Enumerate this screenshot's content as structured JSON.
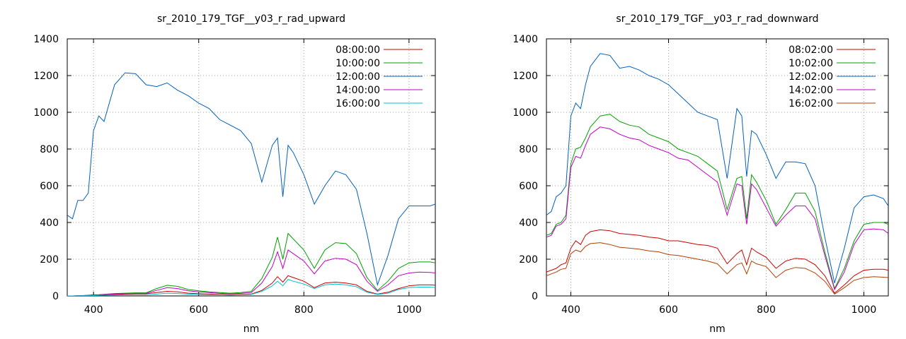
{
  "chart_data": [
    {
      "type": "line",
      "title": "sr_2010_179_TGF__y03_r_rad_upward",
      "xlabel": "nm",
      "ylabel": "",
      "xlim": [
        350,
        1050
      ],
      "ylim": [
        0,
        1400
      ],
      "x_ticks": [
        400,
        600,
        800,
        1000
      ],
      "y_ticks": [
        0,
        200,
        400,
        600,
        800,
        1000,
        1200,
        1400
      ],
      "grid": true,
      "legend": "top-right",
      "x": [
        350,
        360,
        370,
        380,
        390,
        400,
        410,
        420,
        430,
        440,
        460,
        480,
        500,
        520,
        540,
        560,
        580,
        600,
        620,
        640,
        660,
        680,
        700,
        720,
        740,
        750,
        760,
        770,
        780,
        800,
        820,
        840,
        860,
        880,
        900,
        920,
        940,
        960,
        980,
        1000,
        1020,
        1040,
        1050
      ],
      "series": [
        {
          "name": "08:00:00",
          "color": "#cc0000",
          "values": [
            0,
            0,
            1,
            2,
            3,
            4,
            5,
            6,
            7,
            8,
            10,
            12,
            12,
            18,
            25,
            22,
            15,
            12,
            10,
            8,
            7,
            8,
            10,
            30,
            70,
            105,
            75,
            110,
            100,
            80,
            45,
            70,
            75,
            70,
            60,
            25,
            10,
            20,
            40,
            55,
            60,
            60,
            58
          ]
        },
        {
          "name": "10:00:00",
          "color": "#00a000",
          "values": [
            0,
            0,
            1,
            2,
            4,
            6,
            7,
            9,
            11,
            13,
            15,
            17,
            17,
            40,
            58,
            52,
            35,
            28,
            22,
            18,
            15,
            18,
            25,
            95,
            210,
            320,
            200,
            340,
            310,
            250,
            150,
            250,
            290,
            285,
            230,
            100,
            30,
            80,
            150,
            180,
            185,
            185,
            180
          ]
        },
        {
          "name": "12:00:00",
          "color": "#0060c0",
          "values": [
            440,
            420,
            520,
            520,
            560,
            900,
            980,
            950,
            1050,
            1150,
            1215,
            1210,
            1150,
            1140,
            1160,
            1120,
            1090,
            1050,
            1020,
            960,
            930,
            900,
            830,
            620,
            820,
            860,
            540,
            820,
            780,
            660,
            500,
            600,
            680,
            660,
            580,
            340,
            60,
            220,
            420,
            490,
            490,
            490,
            500
          ]
        },
        {
          "name": "14:00:00",
          "color": "#c000c0",
          "values": [
            0,
            0,
            1,
            2,
            3,
            5,
            6,
            8,
            9,
            11,
            12,
            14,
            14,
            30,
            45,
            40,
            28,
            22,
            18,
            14,
            12,
            14,
            18,
            70,
            160,
            240,
            150,
            250,
            230,
            190,
            120,
            190,
            205,
            200,
            170,
            80,
            25,
            60,
            110,
            125,
            130,
            128,
            125
          ]
        },
        {
          "name": "16:00:00",
          "color": "#00c0d0",
          "values": [
            0,
            0,
            0,
            1,
            1,
            2,
            3,
            4,
            5,
            5,
            6,
            7,
            7,
            10,
            15,
            13,
            10,
            8,
            7,
            6,
            5,
            6,
            8,
            25,
            55,
            80,
            55,
            90,
            80,
            65,
            40,
            60,
            65,
            60,
            50,
            20,
            8,
            15,
            35,
            45,
            48,
            48,
            45
          ]
        }
      ]
    },
    {
      "type": "line",
      "title": "sr_2010_179_TGF__y03_r_rad_downward",
      "xlabel": "nm",
      "ylabel": "",
      "xlim": [
        350,
        1050
      ],
      "ylim": [
        0,
        1400
      ],
      "x_ticks": [
        400,
        600,
        800,
        1000
      ],
      "y_ticks": [
        0,
        200,
        400,
        600,
        800,
        1000,
        1200,
        1400
      ],
      "grid": true,
      "legend": "top-right",
      "x": [
        350,
        360,
        370,
        380,
        390,
        400,
        410,
        420,
        430,
        440,
        460,
        480,
        500,
        520,
        540,
        560,
        580,
        600,
        620,
        640,
        660,
        680,
        700,
        720,
        740,
        750,
        760,
        770,
        780,
        800,
        820,
        840,
        860,
        880,
        900,
        920,
        940,
        960,
        980,
        1000,
        1020,
        1040,
        1050
      ],
      "series": [
        {
          "name": "08:02:00",
          "color": "#cc0000",
          "values": [
            130,
            140,
            150,
            170,
            180,
            260,
            300,
            280,
            330,
            350,
            360,
            355,
            340,
            335,
            330,
            320,
            315,
            300,
            300,
            290,
            280,
            275,
            260,
            175,
            230,
            250,
            170,
            260,
            240,
            210,
            150,
            190,
            205,
            200,
            170,
            110,
            15,
            60,
            110,
            140,
            145,
            145,
            140
          ]
        },
        {
          "name": "10:02:00",
          "color": "#00a000",
          "values": [
            330,
            340,
            390,
            400,
            440,
            720,
            800,
            810,
            860,
            920,
            980,
            990,
            950,
            930,
            920,
            880,
            860,
            840,
            800,
            780,
            760,
            720,
            680,
            470,
            640,
            650,
            420,
            660,
            620,
            520,
            390,
            470,
            560,
            560,
            460,
            240,
            40,
            150,
            300,
            390,
            400,
            400,
            390
          ]
        },
        {
          "name": "12:02:00",
          "color": "#0060c0",
          "values": [
            440,
            460,
            540,
            560,
            600,
            980,
            1050,
            1020,
            1150,
            1250,
            1320,
            1310,
            1240,
            1250,
            1230,
            1200,
            1180,
            1150,
            1100,
            1050,
            1000,
            980,
            960,
            640,
            1020,
            980,
            650,
            900,
            880,
            770,
            640,
            730,
            730,
            720,
            600,
            320,
            70,
            260,
            480,
            540,
            550,
            530,
            490
          ]
        },
        {
          "name": "14:02:00",
          "color": "#c000c0",
          "values": [
            320,
            330,
            380,
            390,
            420,
            700,
            760,
            750,
            820,
            880,
            920,
            910,
            880,
            860,
            850,
            820,
            800,
            780,
            750,
            740,
            700,
            660,
            620,
            440,
            610,
            600,
            390,
            610,
            580,
            480,
            380,
            440,
            490,
            490,
            420,
            220,
            35,
            130,
            280,
            360,
            365,
            360,
            340
          ]
        },
        {
          "name": "16:02:00",
          "color": "#b04000",
          "values": [
            110,
            120,
            130,
            145,
            150,
            230,
            250,
            240,
            270,
            285,
            290,
            280,
            265,
            260,
            255,
            245,
            240,
            225,
            220,
            210,
            200,
            190,
            175,
            120,
            170,
            180,
            120,
            190,
            175,
            160,
            100,
            140,
            155,
            150,
            125,
            80,
            10,
            45,
            85,
            100,
            105,
            102,
            100
          ]
        }
      ]
    }
  ]
}
